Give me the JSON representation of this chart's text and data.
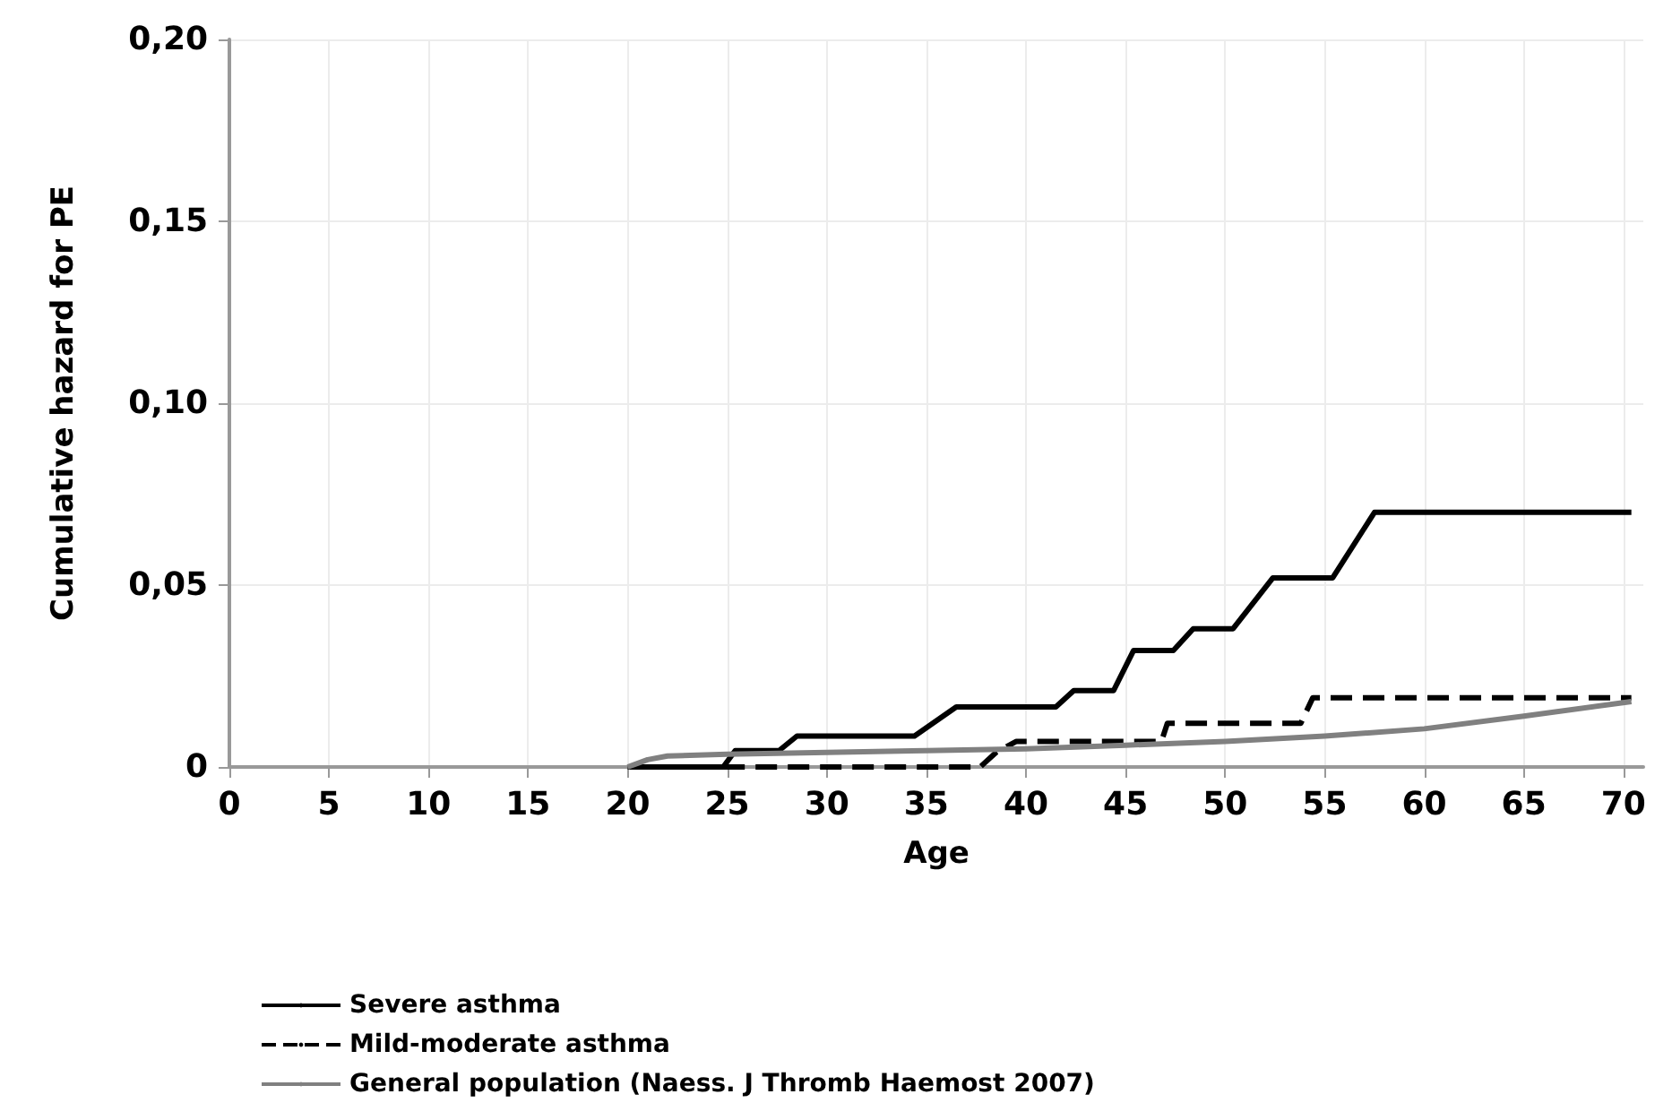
{
  "chart_data": {
    "type": "line",
    "xlabel": "Age",
    "ylabel": "Cumulative hazard for PE",
    "xlim": [
      0,
      71
    ],
    "xticks": [
      0,
      5,
      10,
      15,
      20,
      25,
      30,
      35,
      40,
      45,
      50,
      55,
      60,
      65,
      70
    ],
    "ylim": [
      0,
      0.2
    ],
    "yticks": [
      {
        "value": 0,
        "label": "0"
      },
      {
        "value": 0.05,
        "label": "0,05"
      },
      {
        "value": 0.1,
        "label": "0,10"
      },
      {
        "value": 0.15,
        "label": "0,15"
      },
      {
        "value": 0.2,
        "label": "0,20"
      }
    ],
    "grid": true,
    "legend": "bottom",
    "marker": "none",
    "series": [
      {
        "name": "Severe asthma",
        "color": "#000000",
        "line_style": "solid",
        "x": [
          20,
          24.8,
          25.4,
          27.6,
          28.5,
          34.4,
          36.5,
          41.5,
          42.4,
          44.4,
          45.4,
          47.4,
          48.4,
          50.4,
          52.4,
          55.4,
          57.5,
          70.4
        ],
        "values": [
          0,
          0,
          0.0045,
          0.0045,
          0.0085,
          0.0085,
          0.0165,
          0.0165,
          0.021,
          0.021,
          0.032,
          0.032,
          0.038,
          0.038,
          0.052,
          0.052,
          0.07,
          0.07
        ]
      },
      {
        "name": "Mild-moderate asthma",
        "color": "#000000",
        "line_style": "dashed",
        "x": [
          24.8,
          37.7,
          38.5,
          39.5,
          46.8,
          47.1,
          53.8,
          54.4,
          70.4
        ],
        "values": [
          0,
          0,
          0.004,
          0.007,
          0.007,
          0.012,
          0.012,
          0.019,
          0.019
        ]
      },
      {
        "name": "General population (Naess. J Thromb Haemost 2007)",
        "color": "#808080",
        "line_style": "solid",
        "x": [
          20,
          21,
          22,
          25,
          30,
          35,
          40,
          45,
          50,
          55,
          60,
          65,
          70.4
        ],
        "values": [
          0,
          0.002,
          0.003,
          0.0035,
          0.004,
          0.0045,
          0.005,
          0.006,
          0.007,
          0.0085,
          0.0105,
          0.014,
          0.018
        ]
      }
    ]
  }
}
